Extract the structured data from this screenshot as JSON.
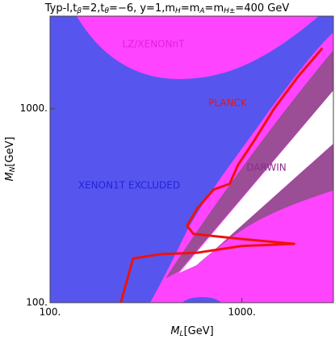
{
  "chart_data": {
    "type": "line",
    "title": [
      "Typ-I,t",
      "β",
      "=2,t",
      "θ",
      "=−6, y=1,m",
      "H",
      "=m",
      "A",
      "=m",
      "H±",
      "=400 GeV"
    ],
    "x_label": [
      "M",
      "L",
      "[GeV]"
    ],
    "y_label": [
      "M",
      "N",
      "[GeV]"
    ],
    "log_x": true,
    "log_y": true,
    "xlim": [
      100,
      3000
    ],
    "ylim": [
      100,
      3000
    ],
    "xticks": [
      {
        "value": 100,
        "label": "100."
      },
      {
        "value": 1000,
        "label": "1000."
      }
    ],
    "yticks": [
      {
        "value": 100,
        "label": "100."
      },
      {
        "value": 1000,
        "label": "1000."
      }
    ],
    "annotations": [
      {
        "text": "LZ/XENONnT",
        "color": "#e020e0"
      },
      {
        "text": "PLANCK",
        "color": "#ee1111"
      },
      {
        "text": "DARWIN",
        "color": "#8a2d8a"
      },
      {
        "text": "XENON1T EXCLUDED",
        "color": "#2222dd"
      }
    ],
    "series": [
      {
        "name": "PLANCK",
        "color": "#ee1111",
        "x": [
          234,
          271,
          380,
          587,
          1000,
          1874,
          1000,
          560,
          518,
          587,
          713,
          864,
          953,
          1156,
          1472,
          1968,
          2630
        ],
        "values": [
          100,
          169,
          178,
          181,
          196,
          201,
          213,
          226,
          249,
          307,
          383,
          410,
          511,
          681,
          1000,
          1468,
          2053
        ]
      }
    ]
  }
}
